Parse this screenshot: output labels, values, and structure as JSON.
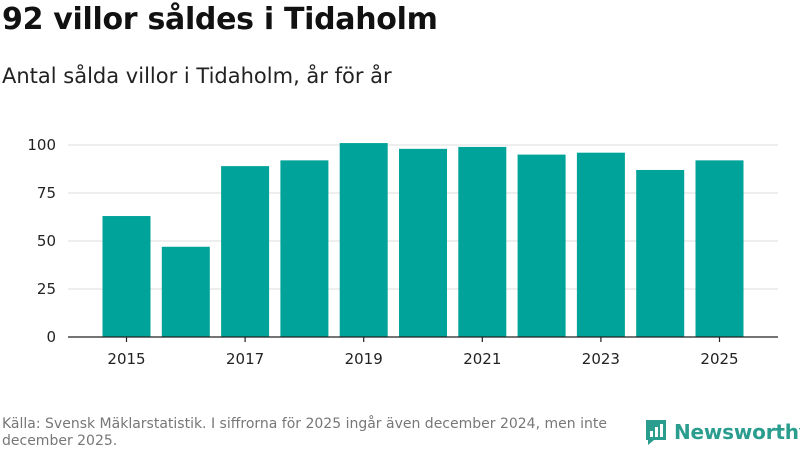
{
  "header": {
    "title": "92 villor såldes i Tidaholm",
    "subtitle": "Antal sålda villor i Tidaholm, år för år"
  },
  "chart_data": {
    "type": "bar",
    "title": "92 villor såldes i Tidaholm",
    "subtitle": "Antal sålda villor i Tidaholm, år för år",
    "xlabel": "",
    "ylabel": "",
    "categories": [
      2015,
      2016,
      2017,
      2018,
      2019,
      2020,
      2021,
      2022,
      2023,
      2024,
      2025
    ],
    "values": [
      63,
      47,
      89,
      92,
      101,
      98,
      99,
      95,
      96,
      87,
      92
    ],
    "x_tick_labels": [
      "2015",
      "2017",
      "2019",
      "2021",
      "2023",
      "2025"
    ],
    "y_ticks": [
      0,
      25,
      50,
      75,
      100
    ],
    "ylim": [
      0,
      100
    ],
    "grid": true,
    "bar_color": "#00a399",
    "grid_color": "#dcdcdc"
  },
  "footer": {
    "source": "Källa: Svensk Mäklarstatistik. I siffrorna för 2025 ingår även december 2024, men inte december 2025.",
    "brand_name": "Newsworthy",
    "brand_color": "#2a9d8f",
    "logo_icon": "newsworthy-logo-icon"
  }
}
